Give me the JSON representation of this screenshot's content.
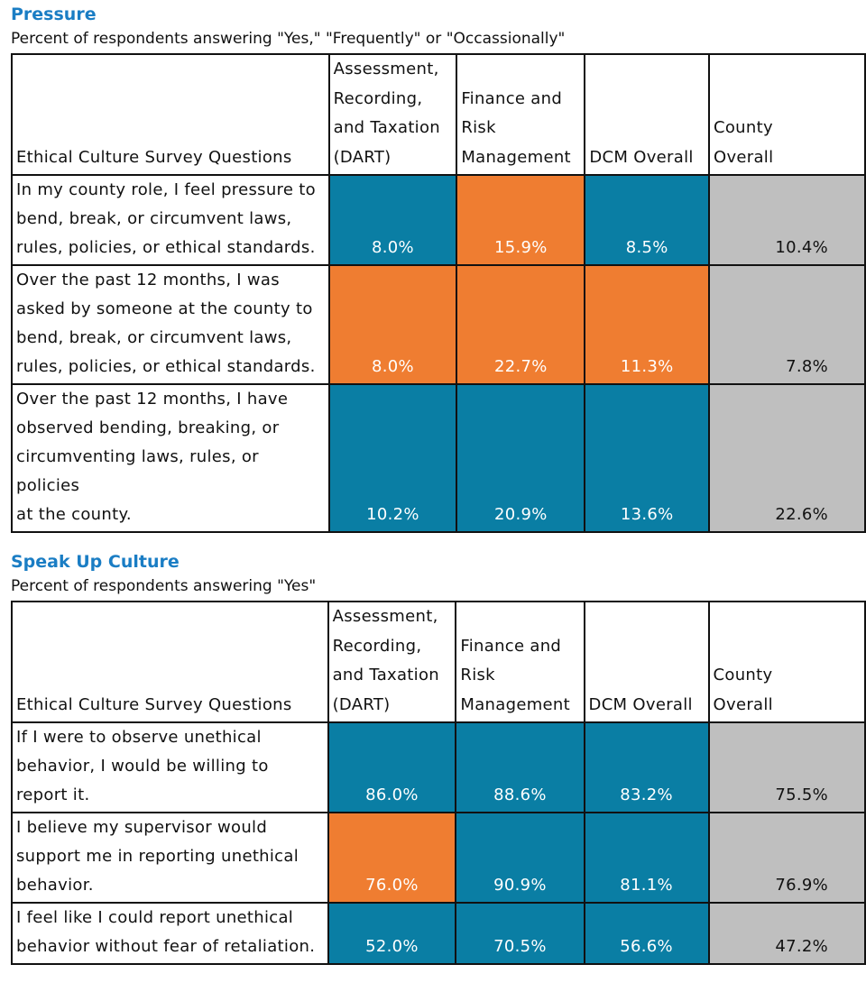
{
  "colors": {
    "title": "#1a7dc4",
    "blue": "#0a7ea4",
    "orange": "#ef7d31",
    "gray": "#bfbfbf",
    "white_text": "#ffffff",
    "dark_text": "#111111"
  },
  "pressure": {
    "title": "Pressure",
    "subtitle": "Percent of respondents answering \"Yes,\" \"Frequently\" or \"Occassionally\"",
    "headers": [
      [
        "Ethical Culture Survey Questions"
      ],
      [
        "Assessment,",
        "Recording,",
        "and Taxation",
        "(DART)"
      ],
      [
        "Finance and",
        "Risk",
        "Management"
      ],
      [
        "DCM Overall"
      ],
      [
        "County",
        "Overall"
      ]
    ],
    "rows": [
      {
        "question": [
          "In my county role, I feel pressure to",
          "bend, break, or circumvent laws,",
          "rules, policies, or ethical standards."
        ],
        "values": [
          {
            "text": "8.0%",
            "color": "blue"
          },
          {
            "text": "15.9%",
            "color": "orange"
          },
          {
            "text": "8.5%",
            "color": "blue"
          },
          {
            "text": "10.4%",
            "color": "gray"
          }
        ]
      },
      {
        "question": [
          "Over the past 12 months, I was",
          "asked by someone at the county to",
          "bend, break, or circumvent laws,",
          "rules, policies, or ethical standards."
        ],
        "values": [
          {
            "text": "8.0%",
            "color": "orange"
          },
          {
            "text": "22.7%",
            "color": "orange"
          },
          {
            "text": "11.3%",
            "color": "orange"
          },
          {
            "text": "7.8%",
            "color": "gray"
          }
        ]
      },
      {
        "question": [
          "Over the past 12 months, I have",
          "observed bending, breaking, or",
          "circumventing laws, rules, or policies",
          "at the county."
        ],
        "values": [
          {
            "text": "10.2%",
            "color": "blue"
          },
          {
            "text": "20.9%",
            "color": "blue"
          },
          {
            "text": "13.6%",
            "color": "blue"
          },
          {
            "text": "22.6%",
            "color": "gray"
          }
        ]
      }
    ]
  },
  "speakup": {
    "title": "Speak Up Culture",
    "subtitle": "Percent of respondents answering \"Yes\"",
    "headers": [
      [
        "Ethical Culture Survey Questions"
      ],
      [
        "Assessment,",
        "Recording,",
        "and Taxation",
        "(DART)"
      ],
      [
        "Finance and",
        "Risk",
        "Management"
      ],
      [
        "DCM Overall"
      ],
      [
        "County",
        "Overall"
      ]
    ],
    "rows": [
      {
        "question": [
          "If I were to observe unethical",
          "behavior, I would be willing to",
          "report it."
        ],
        "values": [
          {
            "text": "86.0%",
            "color": "blue"
          },
          {
            "text": "88.6%",
            "color": "blue"
          },
          {
            "text": "83.2%",
            "color": "blue"
          },
          {
            "text": "75.5%",
            "color": "gray"
          }
        ]
      },
      {
        "question": [
          "I believe my supervisor would",
          "support me in reporting unethical",
          "behavior."
        ],
        "values": [
          {
            "text": "76.0%",
            "color": "orange"
          },
          {
            "text": "90.9%",
            "color": "blue"
          },
          {
            "text": "81.1%",
            "color": "blue"
          },
          {
            "text": "76.9%",
            "color": "gray"
          }
        ]
      },
      {
        "question": [
          "I feel like I could report unethical",
          "behavior without fear of retaliation."
        ],
        "values": [
          {
            "text": "52.0%",
            "color": "blue"
          },
          {
            "text": "70.5%",
            "color": "blue"
          },
          {
            "text": "56.6%",
            "color": "blue"
          },
          {
            "text": "47.2%",
            "color": "gray"
          }
        ]
      }
    ]
  }
}
